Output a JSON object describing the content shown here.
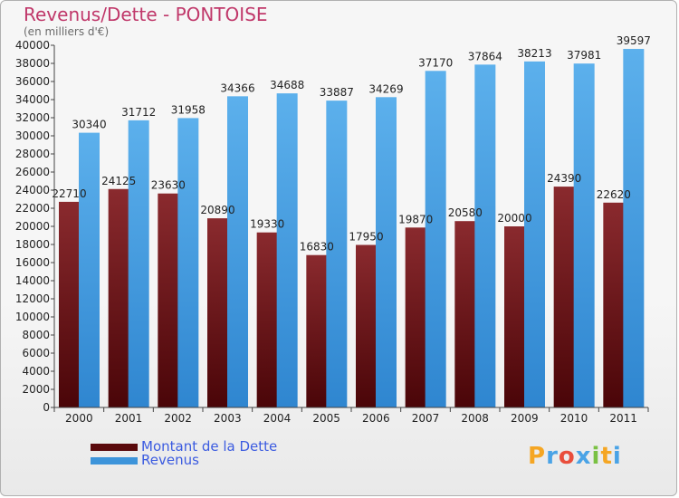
{
  "chart_data": {
    "type": "bar",
    "title": "Revenus/Dette - PONTOISE",
    "subtitle": "(en milliers d'€)",
    "categories": [
      "2000",
      "2001",
      "2002",
      "2003",
      "2004",
      "2005",
      "2006",
      "2007",
      "2008",
      "2009",
      "2010",
      "2011"
    ],
    "series": [
      {
        "name": "Montant de la Dette",
        "color": "#7a1f23",
        "values": [
          22710,
          24125,
          23630,
          20890,
          19330,
          16830,
          17950,
          19870,
          20580,
          20000,
          24390,
          22620
        ],
        "labels": [
          "22710",
          "24125",
          "23630",
          "20890",
          "19330",
          "16830",
          "17950",
          "19870",
          "20580",
          "20000",
          "24390",
          "22620"
        ]
      },
      {
        "name": "Revenus",
        "color": "#4aa3e6",
        "values": [
          30340,
          31712,
          31958,
          34366,
          34688,
          33887,
          34269,
          37170,
          37864,
          38213,
          37981,
          39597
        ],
        "labels": [
          "30340",
          "31712",
          "31958",
          "34366",
          "34688",
          "33887",
          "34269",
          "37170",
          "37864",
          "38213",
          "37981",
          "39597"
        ]
      }
    ],
    "ylim": [
      0,
      40000
    ],
    "yticks": [
      0,
      2000,
      4000,
      6000,
      8000,
      10000,
      12000,
      14000,
      16000,
      18000,
      20000,
      22000,
      24000,
      26000,
      28000,
      30000,
      32000,
      34000,
      36000,
      38000,
      40000
    ],
    "grid": false,
    "legend": "bottom-left"
  },
  "logo": {
    "letters": [
      "P",
      "r",
      "o",
      "x",
      "i",
      "t",
      "i"
    ],
    "colors": [
      "#f5a623",
      "#4aa3e6",
      "#e94e3c",
      "#4aa3e6",
      "#7ac143",
      "#f5a623",
      "#4aa3e6"
    ]
  }
}
